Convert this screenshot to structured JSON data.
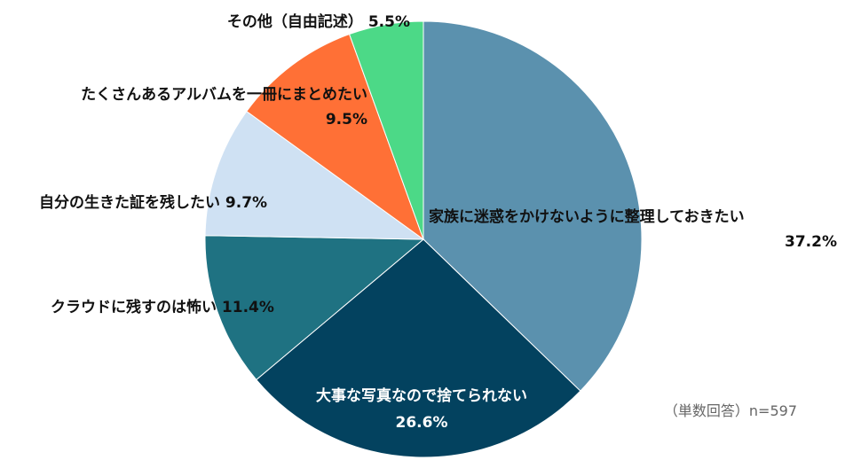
{
  "chart_data": {
    "type": "pie",
    "slices": [
      {
        "label": "家族に迷惑をかけないように整理しておきたい",
        "value": 37.2,
        "value_label": "37.2%",
        "color": "#5B91AE"
      },
      {
        "label": "大事な写真なので捨てられない",
        "value": 26.6,
        "value_label": "26.6%",
        "color": "#03425F"
      },
      {
        "label": "クラウドに残すのは怖い",
        "value": 11.4,
        "value_label": "11.4%",
        "color": "#1F7282"
      },
      {
        "label": "自分の生きた証を残したい",
        "value": 9.7,
        "value_label": "9.7%",
        "color": "#CFE1F3"
      },
      {
        "label": "たくさんあるアルバムを一冊にまとめたい",
        "value": 9.5,
        "value_label": "9.5%",
        "color": "#FF7036"
      },
      {
        "label": "その他（自由記述）",
        "value": 5.5,
        "value_label": "5.5%",
        "color": "#4CD987"
      }
    ],
    "note": "（単数回答）n=597",
    "start": "12 o'clock, clockwise"
  }
}
